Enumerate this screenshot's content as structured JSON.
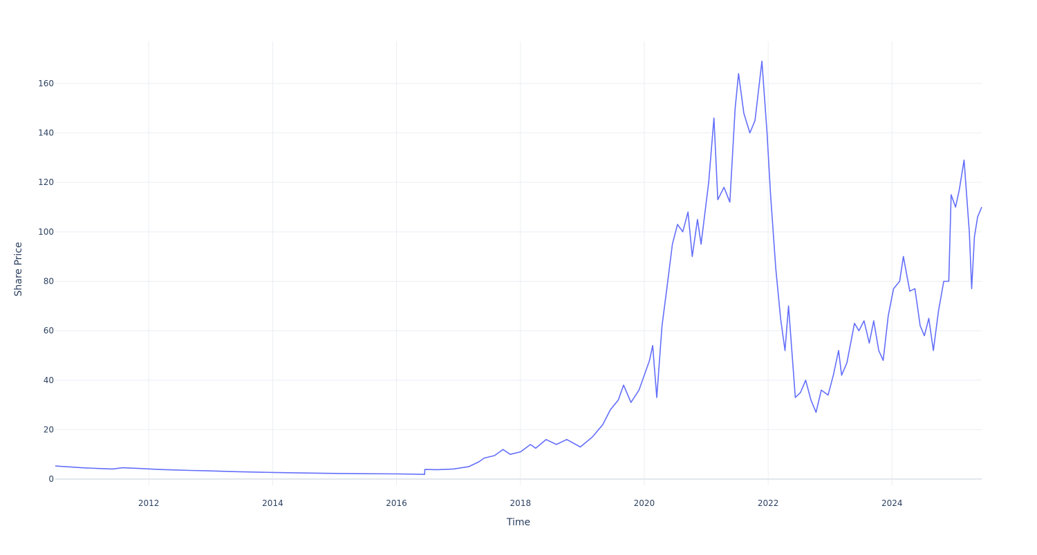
{
  "chart_data": {
    "type": "line",
    "title": "",
    "xlabel": "Time",
    "ylabel": "Share Price",
    "grid": true,
    "legend": "none",
    "xlim": [
      "2010-06-29",
      "2025-06-13"
    ],
    "ylim": [
      -2.5,
      177
    ],
    "x_ticks": [
      "2012",
      "2014",
      "2016",
      "2018",
      "2020",
      "2022",
      "2024"
    ],
    "y_ticks": [
      0,
      20,
      40,
      60,
      80,
      100,
      120,
      140,
      160
    ],
    "series": [
      {
        "color": "#636efa",
        "points": [
          [
            "2010-06-29",
            5.3
          ],
          [
            "2010-09-01",
            5.0
          ],
          [
            "2010-12-01",
            4.6
          ],
          [
            "2011-03-01",
            4.3
          ],
          [
            "2011-06-01",
            4.1
          ],
          [
            "2011-08-01",
            4.6
          ],
          [
            "2011-11-01",
            4.3
          ],
          [
            "2012-03-01",
            3.9
          ],
          [
            "2012-06-01",
            3.7
          ],
          [
            "2012-09-01",
            3.5
          ],
          [
            "2012-12-01",
            3.4
          ],
          [
            "2013-06-01",
            3.0
          ],
          [
            "2014-01-01",
            2.7
          ],
          [
            "2014-06-01",
            2.5
          ],
          [
            "2015-01-01",
            2.3
          ],
          [
            "2015-06-01",
            2.2
          ],
          [
            "2016-01-01",
            2.1
          ],
          [
            "2016-06-15",
            1.9
          ],
          [
            "2016-06-16",
            3.9
          ],
          [
            "2016-09-01",
            3.8
          ],
          [
            "2016-12-01",
            4.1
          ],
          [
            "2017-03-01",
            5.0
          ],
          [
            "2017-05-01",
            7.0
          ],
          [
            "2017-06-01",
            8.5
          ],
          [
            "2017-08-01",
            9.5
          ],
          [
            "2017-09-20",
            12.0
          ],
          [
            "2017-11-01",
            10.0
          ],
          [
            "2018-01-01",
            11.0
          ],
          [
            "2018-03-01",
            14.0
          ],
          [
            "2018-04-01",
            12.5
          ],
          [
            "2018-06-01",
            16.0
          ],
          [
            "2018-08-01",
            14.0
          ],
          [
            "2018-10-01",
            16.0
          ],
          [
            "2018-12-20",
            13.0
          ],
          [
            "2019-03-01",
            17.0
          ],
          [
            "2019-05-01",
            22.0
          ],
          [
            "2019-06-15",
            28.0
          ],
          [
            "2019-08-01",
            32.0
          ],
          [
            "2019-09-01",
            38.0
          ],
          [
            "2019-10-15",
            31.0
          ],
          [
            "2019-12-01",
            36.0
          ],
          [
            "2020-02-01",
            48.0
          ],
          [
            "2020-02-20",
            54.0
          ],
          [
            "2020-03-15",
            33.0
          ],
          [
            "2020-04-15",
            62.0
          ],
          [
            "2020-05-15",
            78.0
          ],
          [
            "2020-06-15",
            95.0
          ],
          [
            "2020-07-15",
            103.0
          ],
          [
            "2020-08-15",
            100.0
          ],
          [
            "2020-09-15",
            108.0
          ],
          [
            "2020-10-10",
            90.0
          ],
          [
            "2020-11-10",
            105.0
          ],
          [
            "2020-12-01",
            95.0
          ],
          [
            "2021-01-15",
            120.0
          ],
          [
            "2021-02-15",
            146.0
          ],
          [
            "2021-03-10",
            113.0
          ],
          [
            "2021-04-15",
            118.0
          ],
          [
            "2021-05-20",
            112.0
          ],
          [
            "2021-06-20",
            150.0
          ],
          [
            "2021-07-10",
            164.0
          ],
          [
            "2021-08-10",
            148.0
          ],
          [
            "2021-09-15",
            140.0
          ],
          [
            "2021-10-15",
            145.0
          ],
          [
            "2021-11-25",
            169.0
          ],
          [
            "2021-12-25",
            140.0
          ],
          [
            "2022-01-15",
            115.0
          ],
          [
            "2022-02-15",
            85.0
          ],
          [
            "2022-03-15",
            65.0
          ],
          [
            "2022-04-10",
            52.0
          ],
          [
            "2022-05-01",
            70.0
          ],
          [
            "2022-06-10",
            33.0
          ],
          [
            "2022-07-10",
            35.0
          ],
          [
            "2022-08-10",
            40.0
          ],
          [
            "2022-09-10",
            32.0
          ],
          [
            "2022-10-10",
            27.0
          ],
          [
            "2022-11-10",
            36.0
          ],
          [
            "2022-12-20",
            34.0
          ],
          [
            "2023-01-20",
            42.0
          ],
          [
            "2023-02-20",
            52.0
          ],
          [
            "2023-03-10",
            42.0
          ],
          [
            "2023-04-10",
            47.0
          ],
          [
            "2023-05-25",
            63.0
          ],
          [
            "2023-06-20",
            60.0
          ],
          [
            "2023-07-20",
            64.0
          ],
          [
            "2023-08-20",
            55.0
          ],
          [
            "2023-09-15",
            64.0
          ],
          [
            "2023-10-15",
            52.0
          ],
          [
            "2023-11-10",
            48.0
          ],
          [
            "2023-12-10",
            66.0
          ],
          [
            "2024-01-10",
            77.0
          ],
          [
            "2024-02-15",
            80.0
          ],
          [
            "2024-03-08",
            90.0
          ],
          [
            "2024-04-15",
            76.0
          ],
          [
            "2024-05-15",
            77.0
          ],
          [
            "2024-06-15",
            62.0
          ],
          [
            "2024-07-10",
            58.0
          ],
          [
            "2024-08-05",
            65.0
          ],
          [
            "2024-09-01",
            52.0
          ],
          [
            "2024-10-01",
            68.0
          ],
          [
            "2024-11-01",
            80.0
          ],
          [
            "2024-12-01",
            80.0
          ],
          [
            "2024-12-15",
            115.0
          ],
          [
            "2025-01-10",
            110.0
          ],
          [
            "2025-02-01",
            117.0
          ],
          [
            "2025-03-01",
            129.0
          ],
          [
            "2025-04-01",
            100.0
          ],
          [
            "2025-04-15",
            77.0
          ],
          [
            "2025-05-01",
            98.0
          ],
          [
            "2025-05-20",
            106.0
          ],
          [
            "2025-06-13",
            110.0
          ]
        ]
      }
    ]
  }
}
